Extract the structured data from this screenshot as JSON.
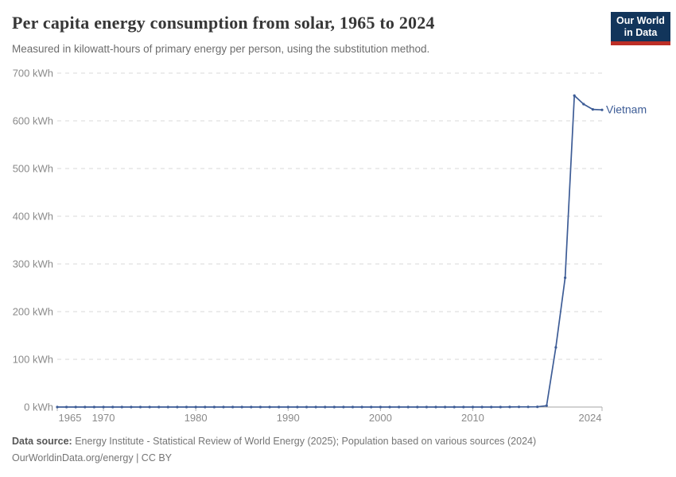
{
  "header": {
    "title": "Per capita energy consumption from solar, 1965 to 2024",
    "subtitle": "Measured in kilowatt-hours of primary energy per person, using the substitution method.",
    "logo": {
      "line1": "Our World",
      "line2": "in Data",
      "bg_color": "#12355b",
      "accent_color": "#bc2e26"
    }
  },
  "chart_data": {
    "type": "line",
    "title": "Per capita energy consumption from solar, 1965 to 2024",
    "xlabel": "",
    "ylabel": "kWh",
    "xlim": [
      1965,
      2024
    ],
    "ylim": [
      0,
      700
    ],
    "grid": "horizontal-dashed",
    "y_ticks": [
      0,
      100,
      200,
      300,
      400,
      500,
      600,
      700
    ],
    "y_tick_suffix": " kWh",
    "x_ticks": [
      1965,
      1970,
      1980,
      1990,
      2000,
      2010,
      2024
    ],
    "series": [
      {
        "name": "Vietnam",
        "color": "#3d5c96",
        "x": [
          1965,
          1966,
          1967,
          1968,
          1969,
          1970,
          1971,
          1972,
          1973,
          1974,
          1975,
          1976,
          1977,
          1978,
          1979,
          1980,
          1981,
          1982,
          1983,
          1984,
          1985,
          1986,
          1987,
          1988,
          1989,
          1990,
          1991,
          1992,
          1993,
          1994,
          1995,
          1996,
          1997,
          1998,
          1999,
          2000,
          2001,
          2002,
          2003,
          2004,
          2005,
          2006,
          2007,
          2008,
          2009,
          2010,
          2011,
          2012,
          2013,
          2014,
          2015,
          2016,
          2017,
          2018,
          2019,
          2020,
          2021,
          2022,
          2023,
          2024
        ],
        "values": [
          0,
          0,
          0,
          0,
          0,
          0,
          0,
          0,
          0,
          0,
          0,
          0,
          0,
          0,
          0,
          0,
          0,
          0,
          0,
          0,
          0,
          0,
          0,
          0,
          0,
          0,
          0,
          0,
          0,
          0,
          0,
          0,
          0,
          0,
          0,
          0,
          0,
          0,
          0,
          0,
          0,
          0,
          0,
          0,
          0,
          0,
          0,
          0,
          0,
          0.2,
          0.3,
          0.4,
          0.5,
          2.9,
          125,
          271,
          653,
          635,
          624,
          623
        ]
      }
    ],
    "colors": {
      "gridline": "#d9d9d9",
      "zero_axis": "#a6a6a6",
      "tick_mark": "#b0b0b0",
      "tick_label": "#8a8a8a"
    }
  },
  "footer": {
    "datasource_label": "Data source:",
    "datasource_text": " Energy Institute - Statistical Review of World Energy (2025); Population based on various sources (2024)",
    "link_line": "OurWorldinData.org/energy | CC BY"
  }
}
